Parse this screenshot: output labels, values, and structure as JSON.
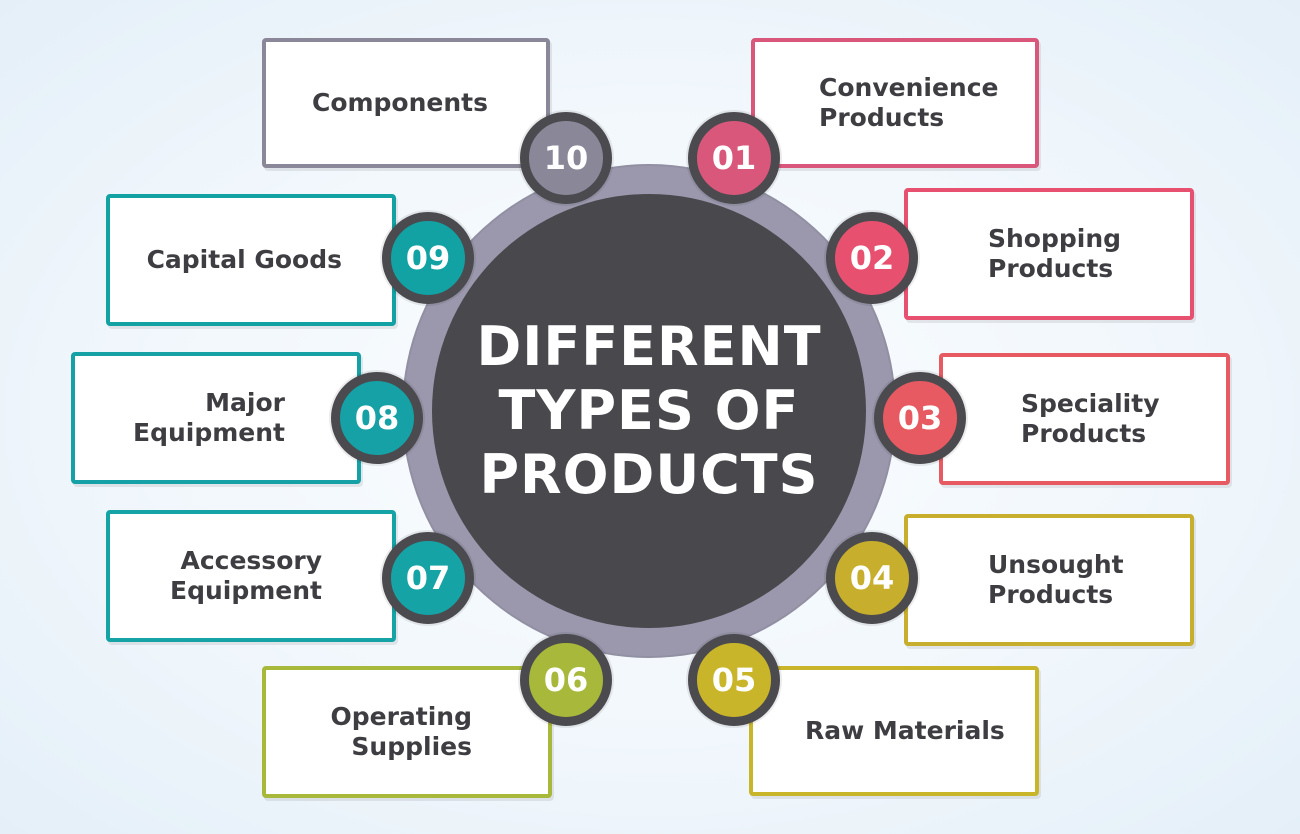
{
  "center": {
    "title": "DIFFERENT\nTYPES OF\nPRODUCTS"
  },
  "colors": {
    "hub": "#48484d",
    "ring": "#9b98ad",
    "badge_border": "#4a4a4f"
  },
  "items": [
    {
      "number": "01",
      "label": "Convenience\nProducts",
      "color": "#d9577a"
    },
    {
      "number": "02",
      "label": "Shopping\nProducts",
      "color": "#e8506f"
    },
    {
      "number": "03",
      "label": "Speciality\nProducts",
      "color": "#e75a62"
    },
    {
      "number": "04",
      "label": "Unsought\nProducts",
      "color": "#c7ae2c"
    },
    {
      "number": "05",
      "label": "Raw Materials",
      "color": "#c9b52a"
    },
    {
      "number": "06",
      "label": "Operating\nSupplies",
      "color": "#a8b83a"
    },
    {
      "number": "07",
      "label": "Accessory\nEquipment",
      "color": "#16a3a6"
    },
    {
      "number": "08",
      "label": "Major\nEquipment",
      "color": "#15a1a5"
    },
    {
      "number": "09",
      "label": "Capital Goods",
      "color": "#12a2a4"
    },
    {
      "number": "10",
      "label": "Components",
      "color": "#8a8799"
    }
  ]
}
